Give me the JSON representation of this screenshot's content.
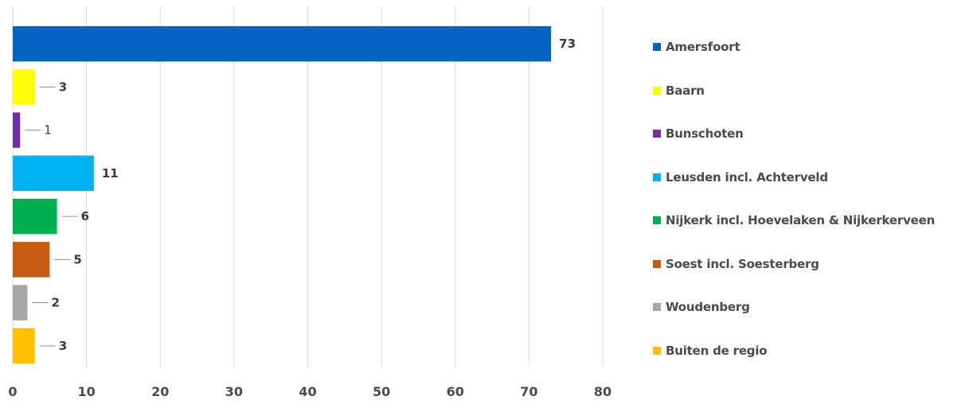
{
  "chart_data": {
    "type": "bar",
    "orientation": "horizontal",
    "title": "",
    "xlabel": "",
    "ylabel": "",
    "xlim": [
      0,
      80
    ],
    "xticks": [
      "0",
      "10",
      "20",
      "30",
      "40",
      "50",
      "60",
      "70",
      "80"
    ],
    "grid": "vertical",
    "legend_position": "right",
    "categories": [
      "Amersfoort",
      "Baarn",
      "Bunschoten",
      "Leusden incl. Achterveld",
      "Nijkerk incl. Hoevelaken & Nijkerkerveen",
      "Soest incl. Soesterberg",
      "Woudenberg",
      "Buiten de regio"
    ],
    "values": [
      73,
      3,
      1,
      11,
      6,
      5,
      2,
      3
    ],
    "value_labels": [
      "73",
      "3",
      "1",
      "11",
      "6",
      "5",
      "2",
      "3"
    ],
    "colors": [
      "#0563C1",
      "#FFFF00",
      "#7030A0",
      "#00B0F0",
      "#00B050",
      "#C55A11",
      "#A5A5A5",
      "#FFC000"
    ]
  }
}
